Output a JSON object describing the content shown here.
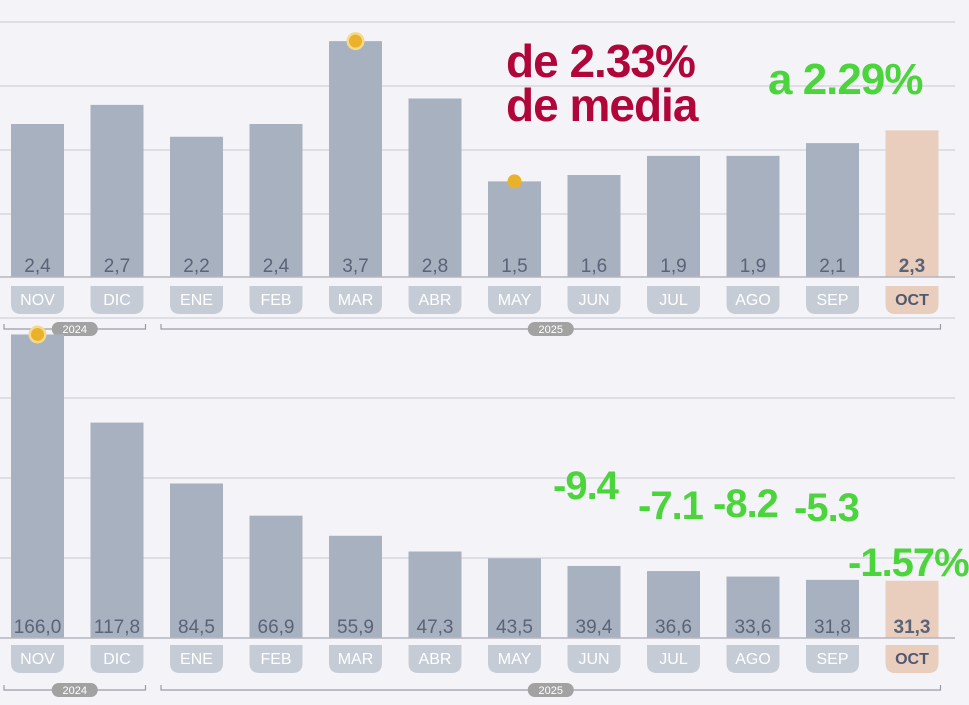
{
  "colors": {
    "bar": "#a7b1bf",
    "highlight_bar": "#e9cdbd",
    "value_text": "#5a6378",
    "label_pill": "#c6ccd6",
    "label_text": "#ffffff",
    "highlight_label_text": "#4f5870",
    "grid": "#c9c9d2",
    "marker": "#eab22b",
    "year_pill": "#a2a2a2",
    "annotation_red": "#b0063a",
    "annotation_green": "#4cd43c"
  },
  "chart_data": [
    {
      "type": "bar",
      "categories": [
        "NOV",
        "DIC",
        "ENE",
        "FEB",
        "MAR",
        "ABR",
        "MAY",
        "JUN",
        "JUL",
        "AGO",
        "SEP",
        "OCT"
      ],
      "values": [
        2.4,
        2.7,
        2.2,
        2.4,
        3.7,
        2.8,
        1.5,
        1.6,
        1.9,
        1.9,
        2.1,
        2.3
      ],
      "value_labels": [
        "2,4",
        "2,7",
        "2,2",
        "2,4",
        "3,7",
        "2,8",
        "1,5",
        "1,6",
        "1,9",
        "1,9",
        "2,1",
        "2,3"
      ],
      "highlight_index": 11,
      "ylim": [
        0,
        4
      ],
      "grid": true,
      "year_groups": [
        {
          "label": "2024",
          "from": 0,
          "to": 1
        },
        {
          "label": "2025",
          "from": 2,
          "to": 11
        }
      ],
      "annotations": [
        "de 2.33%",
        "de media",
        "a 2.29%"
      ]
    },
    {
      "type": "bar",
      "categories": [
        "NOV",
        "DIC",
        "ENE",
        "FEB",
        "MAR",
        "ABR",
        "MAY",
        "JUN",
        "JUL",
        "AGO",
        "SEP",
        "OCT"
      ],
      "values": [
        166.0,
        117.8,
        84.5,
        66.9,
        55.9,
        47.3,
        43.5,
        39.4,
        36.6,
        33.6,
        31.8,
        31.3
      ],
      "value_labels": [
        "166,0",
        "117,8",
        "84,5",
        "66,9",
        "55,9",
        "47,3",
        "43,5",
        "39,4",
        "36,6",
        "33,6",
        "31,8",
        "31,3"
      ],
      "highlight_index": 11,
      "ylim": [
        0,
        175
      ],
      "grid": true,
      "year_groups": [
        {
          "label": "2024",
          "from": 0,
          "to": 1
        },
        {
          "label": "2025",
          "from": 2,
          "to": 11
        }
      ],
      "annotations": [
        "-9.4",
        "-7.1",
        "-8.2",
        "-5.3",
        "-1.57%"
      ]
    }
  ]
}
